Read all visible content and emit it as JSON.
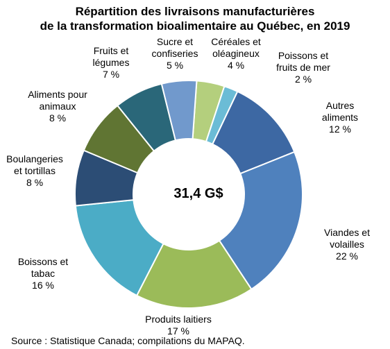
{
  "chart_data": {
    "type": "pie",
    "title_lines": [
      "Répartition des livraisons manufacturières",
      "de la transformation bioalimentaire au Québec, en 2019"
    ],
    "center_text": "31,4 G$",
    "source": "Source : Statistique Canada; compilations du MAPAQ.",
    "slices": [
      {
        "label_lines": [
          "Céréales et",
          "oléagineux"
        ],
        "value_text": "4 %",
        "value": 4,
        "color": "#b4cf7d"
      },
      {
        "label_lines": [
          "Poissons et",
          "fruits de mer"
        ],
        "value_text": "2 %",
        "value": 2,
        "color": "#6bbcd6"
      },
      {
        "label_lines": [
          "Autres",
          "aliments"
        ],
        "value_text": "12 %",
        "value": 12,
        "color": "#3d68a3"
      },
      {
        "label_lines": [
          "Viandes et",
          "volailles"
        ],
        "value_text": "22 %",
        "value": 22,
        "color": "#4f81bd"
      },
      {
        "label_lines": [
          "Produits laitiers"
        ],
        "value_text": "17 %",
        "value": 17,
        "color": "#9bbb59"
      },
      {
        "label_lines": [
          "Boissons et",
          "tabac"
        ],
        "value_text": "16 %",
        "value": 16,
        "color": "#4bacc6"
      },
      {
        "label_lines": [
          "Boulangeries",
          "et tortillas"
        ],
        "value_text": "8 %",
        "value": 8,
        "color": "#2c4d75"
      },
      {
        "label_lines": [
          "Aliments pour",
          "animaux"
        ],
        "value_text": "8 %",
        "value": 8,
        "color": "#607533"
      },
      {
        "label_lines": [
          "Fruits et",
          "légumes"
        ],
        "value_text": "7 %",
        "value": 7,
        "color": "#2a6779"
      },
      {
        "label_lines": [
          "Sucre et",
          "confiseries"
        ],
        "value_text": "5 %",
        "value": 5,
        "color": "#7199cc"
      }
    ]
  }
}
